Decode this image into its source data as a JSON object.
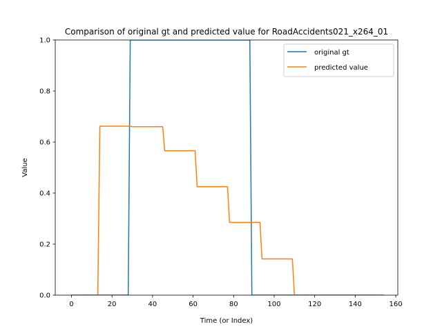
{
  "chart_data": {
    "type": "line",
    "title": "Comparison of original gt and predicted value for RoadAccidents021_x264_01",
    "xlabel": "Time (or Index)",
    "ylabel": "Value",
    "xlim": [
      -8,
      161
    ],
    "ylim": [
      0,
      1.0
    ],
    "xticks": [
      0,
      20,
      40,
      60,
      80,
      100,
      120,
      140,
      160
    ],
    "yticks": [
      0.0,
      0.2,
      0.4,
      0.6,
      0.8,
      1.0
    ],
    "xtick_labels": [
      "0",
      "20",
      "40",
      "60",
      "80",
      "100",
      "120",
      "140",
      "160"
    ],
    "ytick_labels": [
      "0.0",
      "0.2",
      "0.4",
      "0.6",
      "0.8",
      "1.0"
    ],
    "grid": false,
    "legend_position": "top-right",
    "series": [
      {
        "name": "original gt",
        "color": "#1f77b4",
        "x": [
          0,
          28,
          29,
          88,
          89,
          154
        ],
        "y": [
          0,
          0,
          1,
          1,
          0,
          0
        ]
      },
      {
        "name": "predicted value",
        "color": "#ff7f0e",
        "x": [
          0,
          13,
          14,
          29,
          30,
          45,
          46,
          61,
          62,
          77,
          78,
          93,
          94,
          109,
          110,
          154
        ],
        "y": [
          0,
          0,
          0.662,
          0.662,
          0.66,
          0.66,
          0.566,
          0.566,
          0.425,
          0.425,
          0.285,
          0.285,
          0.142,
          0.142,
          0,
          0
        ]
      }
    ]
  }
}
